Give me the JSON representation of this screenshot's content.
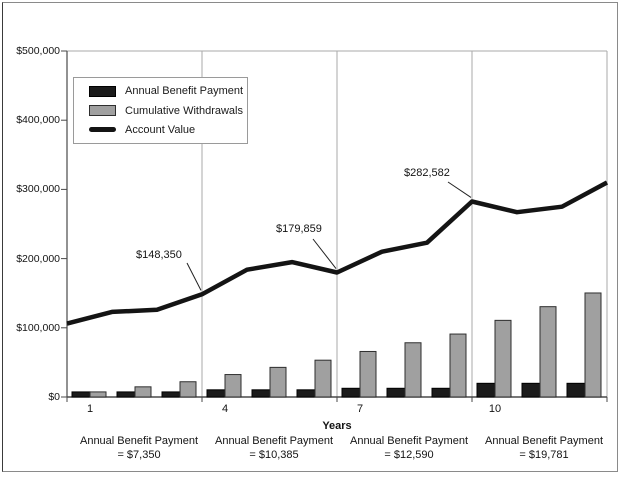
{
  "chart_data": {
    "type": "combo-bar-line",
    "title": "",
    "xlabel": "Years",
    "ylim": [
      0,
      500000
    ],
    "grid": "vertical-only",
    "legend_position": "top-left-inside",
    "y_tick_labels": [
      "$500,000",
      "$400,000",
      "$300,000",
      "$200,000",
      "$100,000",
      "$0"
    ],
    "y_tick_values": [
      500000,
      400000,
      300000,
      200000,
      100000,
      0
    ],
    "x_ticks": [
      {
        "label": "1",
        "category": 1
      },
      {
        "label": "4",
        "category": 4
      },
      {
        "label": "7",
        "category": 7
      },
      {
        "label": "10",
        "category": 10
      }
    ],
    "categories": [
      1,
      2,
      3,
      4,
      5,
      6,
      7,
      8,
      9,
      10,
      11,
      12
    ],
    "bar_series": [
      {
        "name": "Annual Benefit Payment",
        "color": "#1b1b1b",
        "values": [
          7350,
          7350,
          7350,
          10385,
          10385,
          10385,
          12590,
          12590,
          12590,
          19781,
          19781,
          19781
        ]
      },
      {
        "name": "Cumulative Withdrawals",
        "color": "#a0a0a0",
        "values": [
          7350,
          14700,
          22050,
          32435,
          42820,
          53205,
          65795,
          78385,
          90975,
          110756,
          130537,
          150318
        ]
      }
    ],
    "line_series": {
      "name": "Account Value",
      "color": "#141414",
      "x_boundaries": [
        0,
        1,
        2,
        3,
        4,
        5,
        6,
        7,
        8,
        9,
        10,
        11,
        12
      ],
      "values": [
        106000,
        123000,
        126000,
        148350,
        184000,
        195000,
        179859,
        210000,
        223000,
        282582,
        267000,
        275000,
        310000
      ]
    },
    "annotations": [
      {
        "label": "$148,350",
        "value": 148350,
        "at_boundary": 3
      },
      {
        "label": "$179,859",
        "value": 179859,
        "at_boundary": 6
      },
      {
        "label": "$282,582",
        "value": 282582,
        "at_boundary": 9
      }
    ],
    "legend": {
      "items": [
        {
          "label": "Annual Benefit Payment",
          "swatch": "black-bar"
        },
        {
          "label": "Cumulative Withdrawals",
          "swatch": "gray-bar"
        },
        {
          "label": "Account Value",
          "swatch": "thick-line"
        }
      ]
    },
    "footnotes": [
      {
        "line1": "Annual Benefit Payment",
        "line2": "= $7,350"
      },
      {
        "line1": "Annual Benefit Payment",
        "line2": "= $10,385"
      },
      {
        "line1": "Annual Benefit Payment",
        "line2": "= $12,590"
      },
      {
        "line1": "Annual Benefit Payment",
        "line2": "= $19,781"
      }
    ],
    "colors": {
      "bar_annual": "#1b1b1b",
      "bar_cumulative": "#a0a0a0",
      "line": "#141414",
      "gridline": "#aaaaaa",
      "axis": "#4a4a4a",
      "background": "#ffffff"
    }
  }
}
